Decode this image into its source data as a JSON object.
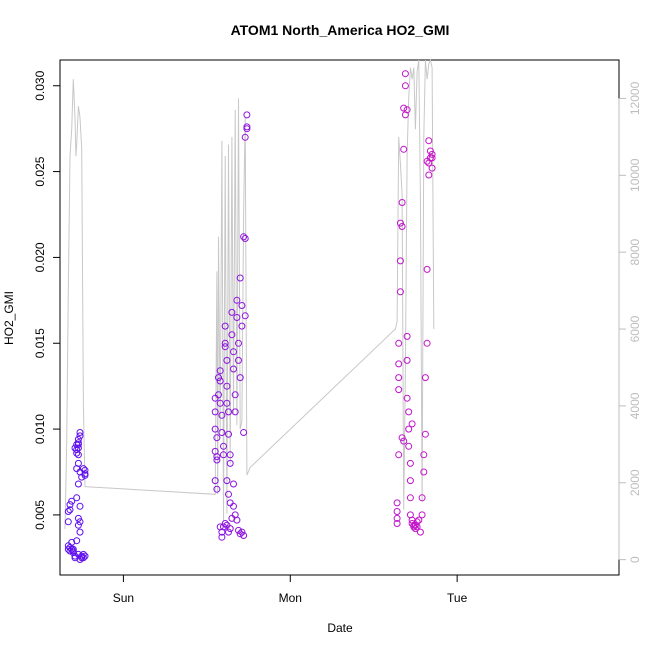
{
  "chart_data": {
    "type": "scatter",
    "title": "ATOM1 North_America HO2_GMI",
    "xlabel": "Date",
    "ylabel": "HO2_GMI",
    "x_unit": "days since Sun 00:00",
    "xlim": [
      -0.38,
      2.97
    ],
    "ylim": [
      0.0015,
      0.0315
    ],
    "y2lim": [
      -400,
      13000
    ],
    "x_ticks": [
      {
        "value": 0,
        "label": "Sun"
      },
      {
        "value": 1,
        "label": "Mon"
      },
      {
        "value": 2,
        "label": "Tue"
      }
    ],
    "y_ticks": [
      {
        "value": 0.005,
        "label": "0.005"
      },
      {
        "value": 0.01,
        "label": "0.010"
      },
      {
        "value": 0.015,
        "label": "0.015"
      },
      {
        "value": 0.02,
        "label": "0.020"
      },
      {
        "value": 0.025,
        "label": "0.025"
      },
      {
        "value": 0.03,
        "label": "0.030"
      }
    ],
    "y2_ticks": [
      {
        "value": 0,
        "label": "0"
      },
      {
        "value": 2000,
        "label": "2000"
      },
      {
        "value": 4000,
        "label": "4000"
      },
      {
        "value": 6000,
        "label": "6000"
      },
      {
        "value": 8000,
        "label": "8000"
      },
      {
        "value": 10000,
        "label": "10000"
      },
      {
        "value": 12000,
        "label": "12000"
      }
    ],
    "grid": false,
    "colors": {
      "early": "#5a10f0",
      "late": "#ff18b4",
      "altitude_line": "#c8c8c8"
    },
    "series": [
      {
        "marker": "open-circle",
        "points": [
          [
            -0.33,
            0.003
          ],
          [
            -0.33,
            0.0032
          ],
          [
            -0.32,
            0.0029
          ],
          [
            -0.32,
            0.0031
          ],
          [
            -0.31,
            0.0034
          ],
          [
            -0.33,
            0.0046
          ],
          [
            -0.33,
            0.0052
          ],
          [
            -0.32,
            0.0056
          ],
          [
            -0.31,
            0.0058
          ],
          [
            -0.32,
            0.0053
          ],
          [
            -0.31,
            0.003
          ],
          [
            -0.3,
            0.0028
          ],
          [
            -0.3,
            0.0029
          ],
          [
            -0.29,
            0.0026
          ],
          [
            -0.29,
            0.0025
          ],
          [
            -0.3,
            0.003
          ],
          [
            -0.28,
            0.006
          ],
          [
            -0.28,
            0.0086
          ],
          [
            -0.29,
            0.0089
          ],
          [
            -0.28,
            0.0091
          ],
          [
            -0.27,
            0.0092
          ],
          [
            -0.27,
            0.0094
          ],
          [
            -0.26,
            0.0096
          ],
          [
            -0.26,
            0.0098
          ],
          [
            -0.27,
            0.0089
          ],
          [
            -0.27,
            0.0085
          ],
          [
            -0.27,
            0.008
          ],
          [
            -0.28,
            0.0077
          ],
          [
            -0.26,
            0.0075
          ],
          [
            -0.25,
            0.0072
          ],
          [
            -0.27,
            0.0068
          ],
          [
            -0.26,
            0.0055
          ],
          [
            -0.27,
            0.0048
          ],
          [
            -0.26,
            0.0046
          ],
          [
            -0.27,
            0.0044
          ],
          [
            -0.26,
            0.004
          ],
          [
            -0.28,
            0.0035
          ],
          [
            -0.27,
            0.0027
          ],
          [
            -0.26,
            0.0024
          ],
          [
            -0.25,
            0.0025
          ],
          [
            -0.25,
            0.0026
          ],
          [
            -0.24,
            0.0027
          ],
          [
            -0.24,
            0.0025
          ],
          [
            -0.23,
            0.0026
          ],
          [
            -0.23,
            0.0074
          ],
          [
            -0.23,
            0.0076
          ],
          [
            -0.24,
            0.0077
          ],
          [
            -0.23,
            0.0073
          ],
          [
            -0.27,
            0.0091
          ],
          [
            -0.28,
            0.0088
          ]
        ]
      },
      {
        "marker": "open-circle",
        "points": [
          [
            0.55,
            0.0118
          ],
          [
            0.55,
            0.011
          ],
          [
            0.55,
            0.01
          ],
          [
            0.56,
            0.0095
          ],
          [
            0.55,
            0.0087
          ],
          [
            0.56,
            0.0084
          ],
          [
            0.56,
            0.0082
          ],
          [
            0.55,
            0.007
          ],
          [
            0.56,
            0.0065
          ],
          [
            0.57,
            0.012
          ],
          [
            0.57,
            0.013
          ],
          [
            0.58,
            0.0134
          ],
          [
            0.58,
            0.0128
          ],
          [
            0.58,
            0.0115
          ],
          [
            0.59,
            0.0108
          ],
          [
            0.59,
            0.0098
          ],
          [
            0.6,
            0.009
          ],
          [
            0.6,
            0.0085
          ],
          [
            0.61,
            0.016
          ],
          [
            0.61,
            0.015
          ],
          [
            0.61,
            0.0148
          ],
          [
            0.62,
            0.014
          ],
          [
            0.62,
            0.0125
          ],
          [
            0.62,
            0.0115
          ],
          [
            0.63,
            0.011
          ],
          [
            0.63,
            0.0097
          ],
          [
            0.64,
            0.0085
          ],
          [
            0.64,
            0.008
          ],
          [
            0.65,
            0.0168
          ],
          [
            0.65,
            0.0155
          ],
          [
            0.66,
            0.0145
          ],
          [
            0.66,
            0.0135
          ],
          [
            0.67,
            0.012
          ],
          [
            0.67,
            0.011
          ],
          [
            0.68,
            0.0175
          ],
          [
            0.68,
            0.0165
          ],
          [
            0.69,
            0.015
          ],
          [
            0.69,
            0.014
          ],
          [
            0.7,
            0.013
          ],
          [
            0.7,
            0.0188
          ],
          [
            0.71,
            0.0172
          ],
          [
            0.71,
            0.016
          ],
          [
            0.72,
            0.0212
          ],
          [
            0.73,
            0.0211
          ],
          [
            0.73,
            0.0166
          ],
          [
            0.74,
            0.0275
          ],
          [
            0.74,
            0.0283
          ],
          [
            0.73,
            0.027
          ],
          [
            0.74,
            0.0276
          ],
          [
            0.72,
            0.0098
          ],
          [
            0.58,
            0.0043
          ],
          [
            0.59,
            0.004
          ],
          [
            0.59,
            0.0037
          ],
          [
            0.6,
            0.0043
          ],
          [
            0.61,
            0.0045
          ],
          [
            0.62,
            0.0044
          ],
          [
            0.63,
            0.004
          ],
          [
            0.64,
            0.0042
          ],
          [
            0.65,
            0.0048
          ],
          [
            0.66,
            0.0055
          ],
          [
            0.67,
            0.005
          ],
          [
            0.68,
            0.0047
          ],
          [
            0.69,
            0.0041
          ],
          [
            0.7,
            0.0039
          ],
          [
            0.71,
            0.004
          ],
          [
            0.72,
            0.0038
          ],
          [
            0.64,
            0.0057
          ],
          [
            0.62,
            0.007
          ],
          [
            0.66,
            0.0068
          ],
          [
            0.63,
            0.0062
          ]
        ]
      },
      {
        "marker": "open-circle",
        "points": [
          [
            1.64,
            0.0045
          ],
          [
            1.64,
            0.0048
          ],
          [
            1.64,
            0.0052
          ],
          [
            1.64,
            0.0057
          ],
          [
            1.65,
            0.0085
          ],
          [
            1.65,
            0.0123
          ],
          [
            1.65,
            0.013
          ],
          [
            1.65,
            0.0138
          ],
          [
            1.65,
            0.015
          ],
          [
            1.66,
            0.018
          ],
          [
            1.66,
            0.0198
          ],
          [
            1.66,
            0.022
          ],
          [
            1.67,
            0.0218
          ],
          [
            1.67,
            0.0232
          ],
          [
            1.68,
            0.0263
          ],
          [
            1.68,
            0.0287
          ],
          [
            1.69,
            0.03
          ],
          [
            1.69,
            0.0307
          ],
          [
            1.69,
            0.0283
          ],
          [
            1.7,
            0.0286
          ],
          [
            1.7,
            0.0154
          ],
          [
            1.7,
            0.014
          ],
          [
            1.7,
            0.0118
          ],
          [
            1.71,
            0.011
          ],
          [
            1.71,
            0.01
          ],
          [
            1.71,
            0.009
          ],
          [
            1.72,
            0.008
          ],
          [
            1.72,
            0.007
          ],
          [
            1.72,
            0.006
          ],
          [
            1.72,
            0.005
          ],
          [
            1.73,
            0.0047
          ],
          [
            1.73,
            0.0045
          ],
          [
            1.74,
            0.0044
          ],
          [
            1.74,
            0.0043
          ],
          [
            1.75,
            0.0042
          ],
          [
            1.75,
            0.0044
          ],
          [
            1.76,
            0.0046
          ],
          [
            1.76,
            0.0043
          ],
          [
            1.77,
            0.0047
          ],
          [
            1.78,
            0.004
          ],
          [
            1.79,
            0.005
          ],
          [
            1.79,
            0.006
          ],
          [
            1.8,
            0.0075
          ],
          [
            1.8,
            0.0085
          ],
          [
            1.81,
            0.0097
          ],
          [
            1.81,
            0.013
          ],
          [
            1.82,
            0.015
          ],
          [
            1.82,
            0.0193
          ],
          [
            1.83,
            0.0248
          ],
          [
            1.83,
            0.0255
          ],
          [
            1.84,
            0.0258
          ],
          [
            1.84,
            0.0262
          ],
          [
            1.85,
            0.0252
          ],
          [
            1.85,
            0.0258
          ],
          [
            1.85,
            0.026
          ],
          [
            1.83,
            0.0268
          ],
          [
            1.82,
            0.0256
          ],
          [
            1.68,
            0.0093
          ],
          [
            1.67,
            0.0095
          ],
          [
            1.73,
            0.0103
          ]
        ]
      }
    ],
    "altitude_line": [
      [
        -0.35,
        800
      ],
      [
        -0.34,
        3000
      ],
      [
        -0.33,
        7000
      ],
      [
        -0.32,
        10500
      ],
      [
        -0.31,
        11200
      ],
      [
        -0.3,
        12500
      ],
      [
        -0.29,
        11500
      ],
      [
        -0.285,
        10500
      ],
      [
        -0.28,
        10800
      ],
      [
        -0.27,
        11800
      ],
      [
        -0.26,
        11500
      ],
      [
        -0.25,
        10700
      ],
      [
        -0.24,
        4000
      ],
      [
        -0.23,
        1900
      ],
      [
        0.55,
        1700
      ],
      [
        0.56,
        7500
      ],
      [
        0.565,
        1700
      ],
      [
        0.57,
        8400
      ],
      [
        0.58,
        3300
      ],
      [
        0.59,
        10900
      ],
      [
        0.6,
        1000
      ],
      [
        0.61,
        10500
      ],
      [
        0.62,
        1200
      ],
      [
        0.63,
        10800
      ],
      [
        0.64,
        2500
      ],
      [
        0.65,
        11000
      ],
      [
        0.66,
        3800
      ],
      [
        0.67,
        11700
      ],
      [
        0.68,
        3500
      ],
      [
        0.69,
        12000
      ],
      [
        0.7,
        3400
      ],
      [
        0.71,
        3600
      ],
      [
        0.72,
        9000
      ],
      [
        0.73,
        11500
      ],
      [
        0.74,
        2200
      ],
      [
        0.76,
        2400
      ],
      [
        1.63,
        6000
      ],
      [
        1.64,
        6200
      ],
      [
        1.65,
        11000
      ],
      [
        1.66,
        10300
      ],
      [
        1.67,
        9500
      ],
      [
        1.68,
        1300
      ],
      [
        1.69,
        5000
      ],
      [
        1.7,
        10500
      ],
      [
        1.71,
        12000
      ],
      [
        1.72,
        12800
      ],
      [
        1.73,
        12500
      ],
      [
        1.74,
        12800
      ],
      [
        1.75,
        11200
      ],
      [
        1.76,
        12700
      ],
      [
        1.77,
        13000
      ],
      [
        1.78,
        9500
      ],
      [
        1.79,
        1500
      ],
      [
        1.8,
        11000
      ],
      [
        1.81,
        13000
      ],
      [
        1.82,
        12500
      ],
      [
        1.83,
        12900
      ],
      [
        1.84,
        13000
      ],
      [
        1.85,
        12800
      ],
      [
        1.86,
        6000
      ]
    ]
  }
}
